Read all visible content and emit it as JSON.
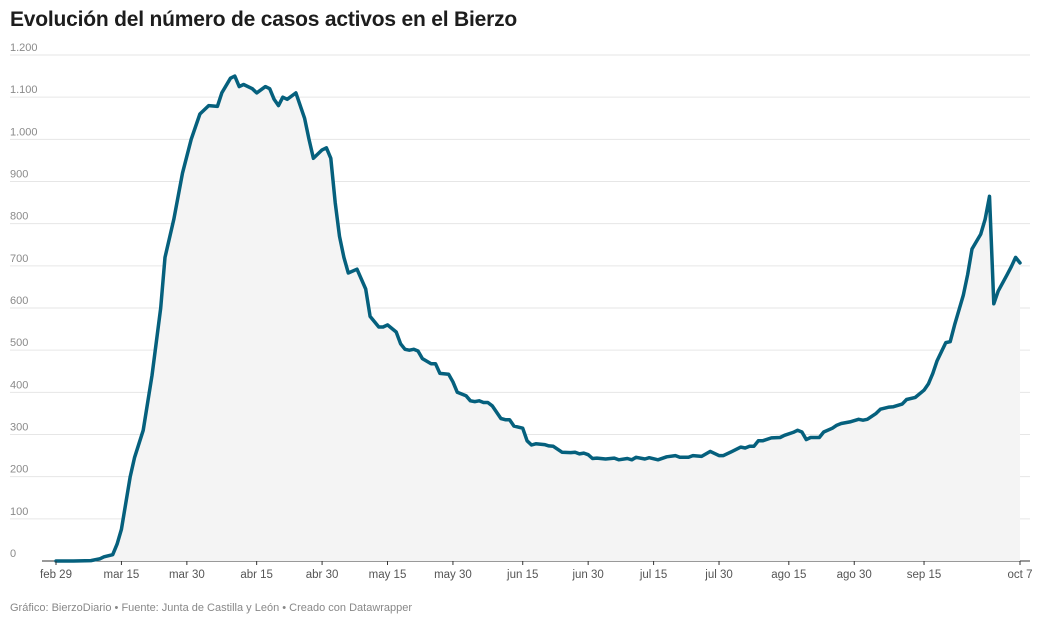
{
  "title": "Evolución del número de casos activos en el Bierzo",
  "footer": "Gráfico: BierzoDiario • Fuente: Junta de Castilla y León • Creado con Datawrapper",
  "colors": {
    "line": "#05607d",
    "area": "#f4f4f4",
    "grid": "#e6e6e6"
  },
  "chart_data": {
    "type": "area",
    "title": "Evolución del número de casos activos en el Bierzo",
    "xlabel": "",
    "ylabel": "",
    "ylim": [
      0,
      1200
    ],
    "grid": true,
    "y_ticks": [
      0,
      100,
      200,
      300,
      400,
      500,
      600,
      700,
      800,
      900,
      1000,
      1100,
      1200
    ],
    "y_tick_labels": [
      "0",
      "100",
      "200",
      "300",
      "400",
      "500",
      "600",
      "700",
      "800",
      "900",
      "1.000",
      "1.100",
      "1.200"
    ],
    "x_ticks": [
      {
        "date": "2020-02-29",
        "label": "feb 29"
      },
      {
        "date": "2020-03-15",
        "label": "mar 15"
      },
      {
        "date": "2020-03-30",
        "label": "mar 30"
      },
      {
        "date": "2020-04-15",
        "label": "abr 15"
      },
      {
        "date": "2020-04-30",
        "label": "abr 30"
      },
      {
        "date": "2020-05-15",
        "label": "may 15"
      },
      {
        "date": "2020-05-30",
        "label": "may 30"
      },
      {
        "date": "2020-06-15",
        "label": "jun 15"
      },
      {
        "date": "2020-06-30",
        "label": "jun 30"
      },
      {
        "date": "2020-07-15",
        "label": "jul 15"
      },
      {
        "date": "2020-07-30",
        "label": "jul 30"
      },
      {
        "date": "2020-08-15",
        "label": "ago 15"
      },
      {
        "date": "2020-08-30",
        "label": "ago 30"
      },
      {
        "date": "2020-09-15",
        "label": "sep 15"
      },
      {
        "date": "2020-10-07",
        "label": "oct 7"
      }
    ],
    "series": [
      {
        "points": [
          [
            "2020-02-29",
            0
          ],
          [
            "2020-03-04",
            0
          ],
          [
            "2020-03-08",
            1
          ],
          [
            "2020-03-10",
            5
          ],
          [
            "2020-03-11",
            10
          ],
          [
            "2020-03-13",
            15
          ],
          [
            "2020-03-14",
            40
          ],
          [
            "2020-03-15",
            75
          ],
          [
            "2020-03-17",
            200
          ],
          [
            "2020-03-18",
            245
          ],
          [
            "2020-03-20",
            310
          ],
          [
            "2020-03-22",
            440
          ],
          [
            "2020-03-24",
            600
          ],
          [
            "2020-03-25",
            720
          ],
          [
            "2020-03-27",
            810
          ],
          [
            "2020-03-29",
            920
          ],
          [
            "2020-03-31",
            1000
          ],
          [
            "2020-04-02",
            1060
          ],
          [
            "2020-04-04",
            1080
          ],
          [
            "2020-04-06",
            1078
          ],
          [
            "2020-04-07",
            1110
          ],
          [
            "2020-04-09",
            1145
          ],
          [
            "2020-04-10",
            1150
          ],
          [
            "2020-04-11",
            1125
          ],
          [
            "2020-04-12",
            1130
          ],
          [
            "2020-04-14",
            1120
          ],
          [
            "2020-04-15",
            1110
          ],
          [
            "2020-04-17",
            1125
          ],
          [
            "2020-04-18",
            1120
          ],
          [
            "2020-04-19",
            1095
          ],
          [
            "2020-04-20",
            1080
          ],
          [
            "2020-04-21",
            1100
          ],
          [
            "2020-04-22",
            1095
          ],
          [
            "2020-04-24",
            1110
          ],
          [
            "2020-04-26",
            1050
          ],
          [
            "2020-04-27",
            1000
          ],
          [
            "2020-04-28",
            955
          ],
          [
            "2020-04-30",
            975
          ],
          [
            "2020-05-01",
            980
          ],
          [
            "2020-05-02",
            955
          ],
          [
            "2020-05-03",
            850
          ],
          [
            "2020-05-04",
            770
          ],
          [
            "2020-05-05",
            720
          ],
          [
            "2020-05-06",
            683
          ],
          [
            "2020-05-08",
            692
          ],
          [
            "2020-05-10",
            645
          ],
          [
            "2020-05-11",
            580
          ],
          [
            "2020-05-13",
            555
          ],
          [
            "2020-05-14",
            555
          ],
          [
            "2020-05-15",
            560
          ],
          [
            "2020-05-17",
            543
          ],
          [
            "2020-05-18",
            515
          ],
          [
            "2020-05-19",
            502
          ],
          [
            "2020-05-20",
            500
          ],
          [
            "2020-05-21",
            502
          ],
          [
            "2020-05-22",
            498
          ],
          [
            "2020-05-23",
            480
          ],
          [
            "2020-05-25",
            468
          ],
          [
            "2020-05-26",
            468
          ],
          [
            "2020-05-27",
            445
          ],
          [
            "2020-05-29",
            443
          ],
          [
            "2020-05-30",
            425
          ],
          [
            "2020-05-31",
            400
          ],
          [
            "2020-06-02",
            392
          ],
          [
            "2020-06-03",
            380
          ],
          [
            "2020-06-04",
            378
          ],
          [
            "2020-06-05",
            380
          ],
          [
            "2020-06-06",
            376
          ],
          [
            "2020-06-07",
            376
          ],
          [
            "2020-06-08",
            368
          ],
          [
            "2020-06-10",
            338
          ],
          [
            "2020-06-11",
            335
          ],
          [
            "2020-06-12",
            335
          ],
          [
            "2020-06-13",
            320
          ],
          [
            "2020-06-15",
            315
          ],
          [
            "2020-06-16",
            285
          ],
          [
            "2020-06-17",
            275
          ],
          [
            "2020-06-18",
            278
          ],
          [
            "2020-06-20",
            276
          ],
          [
            "2020-06-21",
            273
          ],
          [
            "2020-06-22",
            272
          ],
          [
            "2020-06-24",
            258
          ],
          [
            "2020-06-26",
            257
          ],
          [
            "2020-06-27",
            258
          ],
          [
            "2020-06-28",
            254
          ],
          [
            "2020-06-29",
            256
          ],
          [
            "2020-06-30",
            252
          ],
          [
            "2020-07-01",
            243
          ],
          [
            "2020-07-02",
            244
          ],
          [
            "2020-07-04",
            242
          ],
          [
            "2020-07-06",
            244
          ],
          [
            "2020-07-07",
            240
          ],
          [
            "2020-07-09",
            243
          ],
          [
            "2020-07-10",
            240
          ],
          [
            "2020-07-11",
            246
          ],
          [
            "2020-07-13",
            242
          ],
          [
            "2020-07-14",
            245
          ],
          [
            "2020-07-16",
            240
          ],
          [
            "2020-07-18",
            247
          ],
          [
            "2020-07-20",
            250
          ],
          [
            "2020-07-21",
            246
          ],
          [
            "2020-07-23",
            246
          ],
          [
            "2020-07-24",
            250
          ],
          [
            "2020-07-26",
            248
          ],
          [
            "2020-07-28",
            260
          ],
          [
            "2020-07-30",
            250
          ],
          [
            "2020-07-31",
            250
          ],
          [
            "2020-08-02",
            260
          ],
          [
            "2020-08-04",
            270
          ],
          [
            "2020-08-05",
            268
          ],
          [
            "2020-08-06",
            272
          ],
          [
            "2020-08-07",
            272
          ],
          [
            "2020-08-08",
            285
          ],
          [
            "2020-08-09",
            285
          ],
          [
            "2020-08-11",
            292
          ],
          [
            "2020-08-13",
            293
          ],
          [
            "2020-08-14",
            298
          ],
          [
            "2020-08-16",
            305
          ],
          [
            "2020-08-17",
            310
          ],
          [
            "2020-08-18",
            306
          ],
          [
            "2020-08-19",
            288
          ],
          [
            "2020-08-20",
            293
          ],
          [
            "2020-08-22",
            293
          ],
          [
            "2020-08-23",
            306
          ],
          [
            "2020-08-25",
            315
          ],
          [
            "2020-08-26",
            322
          ],
          [
            "2020-08-27",
            326
          ],
          [
            "2020-08-29",
            330
          ],
          [
            "2020-08-31",
            336
          ],
          [
            "2020-09-01",
            334
          ],
          [
            "2020-09-02",
            336
          ],
          [
            "2020-09-04",
            350
          ],
          [
            "2020-09-05",
            360
          ],
          [
            "2020-09-07",
            365
          ],
          [
            "2020-09-08",
            366
          ],
          [
            "2020-09-10",
            372
          ],
          [
            "2020-09-11",
            383
          ],
          [
            "2020-09-13",
            388
          ],
          [
            "2020-09-15",
            405
          ],
          [
            "2020-09-16",
            420
          ],
          [
            "2020-09-17",
            445
          ],
          [
            "2020-09-18",
            475
          ],
          [
            "2020-09-20",
            518
          ],
          [
            "2020-09-21",
            520
          ],
          [
            "2020-09-22",
            560
          ],
          [
            "2020-09-24",
            630
          ],
          [
            "2020-09-25",
            680
          ],
          [
            "2020-09-26",
            740
          ],
          [
            "2020-09-28",
            775
          ],
          [
            "2020-09-29",
            810
          ],
          [
            "2020-09-30",
            865
          ],
          [
            "2020-10-01",
            610
          ],
          [
            "2020-10-02",
            640
          ],
          [
            "2020-10-04",
            678
          ],
          [
            "2020-10-05",
            698
          ],
          [
            "2020-10-06",
            720
          ],
          [
            "2020-10-07",
            707
          ]
        ]
      }
    ]
  }
}
